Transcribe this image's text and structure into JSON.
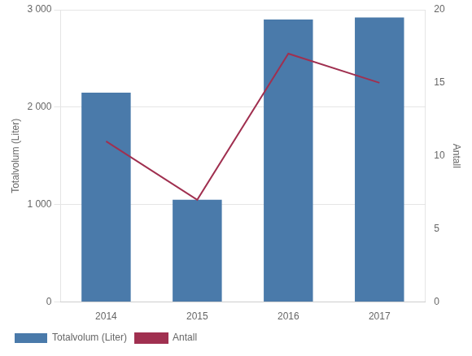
{
  "chart_data": {
    "type": "bar",
    "categories": [
      "2014",
      "2015",
      "2016",
      "2017"
    ],
    "series": [
      {
        "name": "Totalvolum (Liter)",
        "type": "bar",
        "color": "#4a7aaa",
        "values": [
          2150,
          1050,
          2900,
          2920
        ]
      },
      {
        "name": "Antall",
        "type": "line",
        "color": "#a03050",
        "axis": "y2",
        "values": [
          11,
          7,
          17,
          15
        ]
      }
    ],
    "ylabel": "Totalvolum (Liter)",
    "y2label": "Antall",
    "ylim": [
      0,
      3000
    ],
    "yticks": [
      0,
      {
        "value": 1000,
        "label": "1 000"
      },
      {
        "value": 2000,
        "label": "2 000"
      },
      {
        "value": 3000,
        "label": "3 000"
      }
    ],
    "y2lim": [
      0,
      20
    ],
    "y2ticks": [
      0,
      5,
      10,
      15,
      20
    ],
    "grid": true,
    "legend": "bottom"
  }
}
